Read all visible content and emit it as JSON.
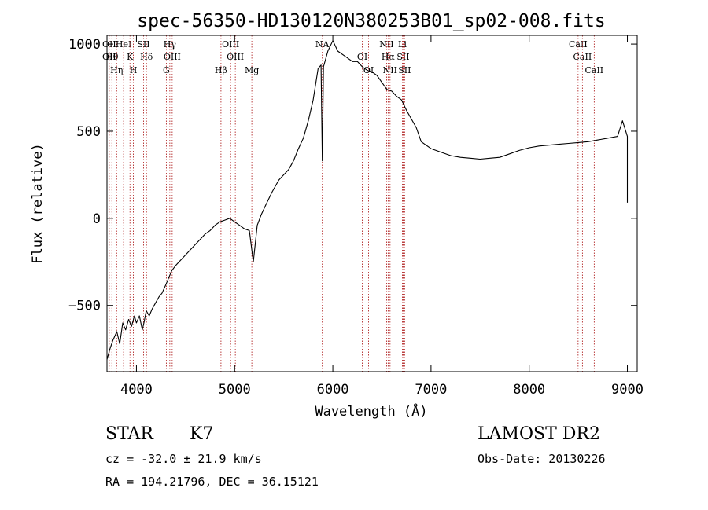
{
  "chart_data": {
    "type": "line",
    "title": "spec-56350-HD130120N380253B01_sp02-008.fits",
    "xlabel": "Wavelength (Å)",
    "ylabel": "Flux (relative)",
    "xlim": [
      3700,
      9100
    ],
    "ylim": [
      -880,
      1050
    ],
    "x_ticks": [
      4000,
      5000,
      6000,
      7000,
      8000,
      9000
    ],
    "y_ticks": [
      -500,
      0,
      500,
      1000
    ],
    "grid": false,
    "series": [
      {
        "color": "#000000",
        "points": [
          [
            3700,
            -810
          ],
          [
            3730,
            -750
          ],
          [
            3760,
            -700
          ],
          [
            3800,
            -650
          ],
          [
            3830,
            -720
          ],
          [
            3860,
            -600
          ],
          [
            3890,
            -640
          ],
          [
            3920,
            -580
          ],
          [
            3950,
            -620
          ],
          [
            3980,
            -560
          ],
          [
            4000,
            -600
          ],
          [
            4030,
            -560
          ],
          [
            4060,
            -640
          ],
          [
            4080,
            -590
          ],
          [
            4100,
            -530
          ],
          [
            4130,
            -560
          ],
          [
            4160,
            -520
          ],
          [
            4200,
            -480
          ],
          [
            4230,
            -450
          ],
          [
            4260,
            -430
          ],
          [
            4300,
            -380
          ],
          [
            4330,
            -340
          ],
          [
            4360,
            -300
          ],
          [
            4400,
            -270
          ],
          [
            4450,
            -240
          ],
          [
            4500,
            -210
          ],
          [
            4550,
            -180
          ],
          [
            4600,
            -150
          ],
          [
            4650,
            -120
          ],
          [
            4700,
            -90
          ],
          [
            4750,
            -70
          ],
          [
            4800,
            -40
          ],
          [
            4850,
            -20
          ],
          [
            4900,
            -10
          ],
          [
            4950,
            0
          ],
          [
            5000,
            -20
          ],
          [
            5050,
            -40
          ],
          [
            5100,
            -60
          ],
          [
            5150,
            -70
          ],
          [
            5190,
            -250
          ],
          [
            5230,
            -40
          ],
          [
            5270,
            20
          ],
          [
            5320,
            80
          ],
          [
            5380,
            150
          ],
          [
            5450,
            220
          ],
          [
            5500,
            250
          ],
          [
            5550,
            280
          ],
          [
            5600,
            330
          ],
          [
            5650,
            400
          ],
          [
            5700,
            460
          ],
          [
            5750,
            560
          ],
          [
            5800,
            680
          ],
          [
            5850,
            860
          ],
          [
            5880,
            880
          ],
          [
            5893,
            330
          ],
          [
            5905,
            870
          ],
          [
            5950,
            960
          ],
          [
            6000,
            1020
          ],
          [
            6050,
            960
          ],
          [
            6100,
            940
          ],
          [
            6150,
            920
          ],
          [
            6200,
            900
          ],
          [
            6250,
            900
          ],
          [
            6300,
            870
          ],
          [
            6350,
            850
          ],
          [
            6400,
            840
          ],
          [
            6450,
            820
          ],
          [
            6500,
            780
          ],
          [
            6550,
            740
          ],
          [
            6600,
            730
          ],
          [
            6650,
            700
          ],
          [
            6700,
            680
          ],
          [
            6750,
            620
          ],
          [
            6800,
            570
          ],
          [
            6850,
            520
          ],
          [
            6900,
            440
          ],
          [
            6950,
            420
          ],
          [
            7000,
            400
          ],
          [
            7100,
            380
          ],
          [
            7200,
            360
          ],
          [
            7300,
            350
          ],
          [
            7400,
            345
          ],
          [
            7500,
            340
          ],
          [
            7600,
            345
          ],
          [
            7700,
            350
          ],
          [
            7800,
            370
          ],
          [
            7900,
            390
          ],
          [
            8000,
            405
          ],
          [
            8100,
            415
          ],
          [
            8200,
            420
          ],
          [
            8300,
            425
          ],
          [
            8400,
            430
          ],
          [
            8500,
            435
          ],
          [
            8600,
            440
          ],
          [
            8700,
            450
          ],
          [
            8800,
            460
          ],
          [
            8900,
            470
          ],
          [
            8950,
            560
          ],
          [
            9000,
            470
          ],
          [
            9000,
            90
          ]
        ]
      }
    ],
    "lines": [
      {
        "x": 3723,
        "labels": [
          "OII",
          "OII"
        ]
      },
      {
        "x": 3750,
        "labels": [
          "Hθ"
        ]
      },
      {
        "x": 3798,
        "labels": [
          "Hη"
        ]
      },
      {
        "x": 3869,
        "labels": [
          "HeI"
        ]
      },
      {
        "x": 3934,
        "labels": [
          "K"
        ]
      },
      {
        "x": 3969,
        "labels": [
          "H"
        ]
      },
      {
        "x": 4072,
        "labels": [
          "SII"
        ]
      },
      {
        "x": 4102,
        "labels": [
          "Hδ"
        ]
      },
      {
        "x": 4304,
        "labels": [
          "G"
        ]
      },
      {
        "x": 4340,
        "labels": [
          "Hγ"
        ]
      },
      {
        "x": 4364,
        "labels": [
          "OIII"
        ]
      },
      {
        "x": 4861,
        "labels": [
          "Hβ"
        ]
      },
      {
        "x": 4959,
        "labels": [
          "OIII"
        ]
      },
      {
        "x": 5007,
        "labels": [
          "OIII"
        ]
      },
      {
        "x": 5175,
        "labels": [
          "Mg"
        ]
      },
      {
        "x": 5893,
        "labels": [
          "NA"
        ]
      },
      {
        "x": 6300,
        "labels": [
          "OI"
        ]
      },
      {
        "x": 6364,
        "labels": [
          "OI"
        ]
      },
      {
        "x": 6548,
        "labels": [
          "NII"
        ]
      },
      {
        "x": 6563,
        "labels": [
          "Hα"
        ]
      },
      {
        "x": 6583,
        "labels": [
          "NII"
        ]
      },
      {
        "x": 6708,
        "labels": [
          "Li"
        ]
      },
      {
        "x": 6716,
        "labels": [
          "SII"
        ]
      },
      {
        "x": 6731,
        "labels": [
          "SII"
        ]
      },
      {
        "x": 8498,
        "labels": [
          "CaII"
        ]
      },
      {
        "x": 8542,
        "labels": [
          "CaII"
        ]
      },
      {
        "x": 8662,
        "labels": [
          "CaII"
        ]
      }
    ]
  },
  "info": {
    "class": "STAR",
    "subclass": "K7",
    "survey": "LAMOST DR2",
    "cz": "cz = -32.0 ± 21.9 km/s",
    "obs_date": "Obs-Date: 20130226",
    "coords": "RA = 194.21796, DEC =  36.15121"
  }
}
